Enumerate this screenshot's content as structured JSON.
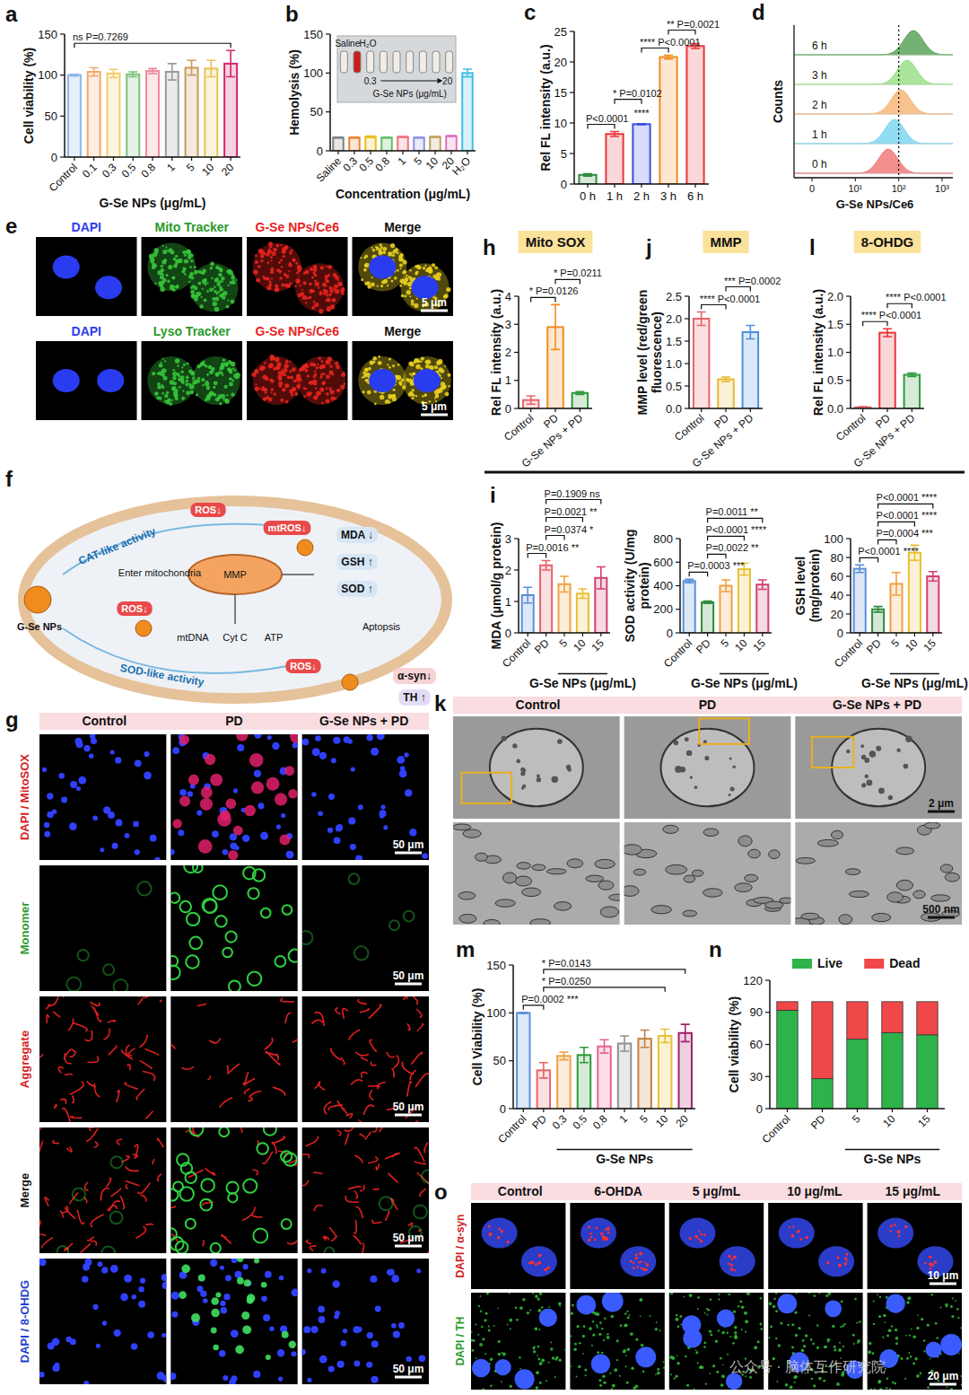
{
  "chart_data": [
    {
      "panel": "a",
      "type": "bar",
      "y_label": "Cell viability (%)",
      "x_label": "G-Se NPs (μg/mL)",
      "categories": [
        "Control",
        "0.1",
        "0.3",
        "0.5",
        "0.8",
        "1",
        "5",
        "10",
        "20"
      ],
      "values": [
        100,
        104,
        102,
        101,
        105,
        104,
        109,
        108,
        114
      ],
      "errors": [
        1,
        5,
        5,
        3,
        3,
        10,
        9,
        10,
        16
      ],
      "colors": [
        "#8fb4ea",
        "#f2a86a",
        "#f0cc6a",
        "#7cc07c",
        "#f08a9a",
        "#9a9a9a",
        "#c79a5a",
        "#e6c34e",
        "#d6246e"
      ],
      "ylim": [
        0,
        150
      ],
      "yticks": [
        0,
        50,
        100,
        150
      ],
      "annotations": [
        {
          "text": "ns P=0.7269",
          "between": [
            0,
            8
          ]
        }
      ]
    },
    {
      "panel": "b",
      "type": "bar",
      "y_label": "Hemolysis (%)",
      "x_label": "Concentration (μg/mL)",
      "categories": [
        "Saline",
        "0.3",
        "0.5",
        "0.8",
        "1",
        "5",
        "10",
        "20",
        "H₂O"
      ],
      "values": [
        17,
        17,
        18,
        17,
        18,
        17,
        18,
        19,
        100
      ],
      "errors": [
        0.5,
        0.5,
        1,
        0.5,
        0.5,
        0.5,
        0.5,
        0.5,
        5
      ],
      "colors": [
        "#808080",
        "#f08030",
        "#e8c020",
        "#60c060",
        "#f07080",
        "#9090e0",
        "#c0a060",
        "#e070c0",
        "#40c0e0"
      ],
      "ylim": [
        0,
        150
      ],
      "yticks": [
        0,
        50,
        100,
        150
      ],
      "inset": {
        "left": "Saline",
        "right": "H₂O",
        "from": "0.3",
        "to": "20",
        "label": "G-Se NPs (μg/mL)"
      }
    },
    {
      "panel": "c",
      "type": "bar",
      "y_label": "Rel FL intensity (a.u.)",
      "categories": [
        "0 h",
        "1 h",
        "2 h",
        "3 h",
        "6 h"
      ],
      "values": [
        1.5,
        8.2,
        9.8,
        20.8,
        22.6
      ],
      "errors": [
        0.2,
        0.4,
        0.1,
        0.3,
        0.4
      ],
      "colors": [
        "#2e8b3e",
        "#e8363a",
        "#3a4fe0",
        "#f08c1e",
        "#e8363a"
      ],
      "ylim": [
        0,
        25
      ],
      "yticks": [
        0,
        5,
        10,
        15,
        20,
        25
      ],
      "annotations": [
        {
          "text": "P<0.0001",
          "between": [
            0,
            1
          ]
        },
        {
          "text": "****",
          "between": [
            2,
            2
          ]
        },
        {
          "text": "* P=0.0102",
          "between": [
            1,
            2
          ]
        },
        {
          "text": "**** P<0.0001",
          "between": [
            2,
            3
          ]
        },
        {
          "text": "** P=0.0021",
          "between": [
            3,
            4
          ]
        }
      ]
    },
    {
      "panel": "h",
      "type": "bar",
      "title": "Mito SOX",
      "y_label": "Rel FL intensity (a.u.)",
      "categories": [
        "Control",
        "PD",
        "G-Se NPs + PD"
      ],
      "values": [
        0.3,
        2.9,
        0.55
      ],
      "errors": [
        0.15,
        0.8,
        0.05
      ],
      "colors": [
        "#e8636b",
        "#f08c1e",
        "#2e9a3e"
      ],
      "ylim": [
        0,
        4
      ],
      "yticks": [
        0,
        1,
        2,
        3,
        4
      ],
      "annotations": [
        {
          "text": "* P=0.0126",
          "between": [
            0,
            1
          ]
        },
        {
          "text": "* P=0.0211",
          "between": [
            1,
            2
          ]
        }
      ]
    },
    {
      "panel": "j",
      "type": "bar",
      "title": "MMP",
      "y_label": "MMP level (red/green fluorescence)",
      "categories": [
        "Control",
        "PD",
        "G-Se NPs + PD"
      ],
      "values": [
        2.0,
        0.65,
        1.7
      ],
      "errors": [
        0.15,
        0.05,
        0.15
      ],
      "colors": [
        "#e8636b",
        "#e8b830",
        "#4a90d9"
      ],
      "ylim": [
        0,
        2.5
      ],
      "yticks": [
        {
          "value": 0,
          "label": "0.0"
        },
        0.5,
        {
          "value": 1,
          "label": "1.0"
        },
        1.5,
        {
          "value": 2,
          "label": "2.0"
        },
        2.5
      ],
      "annotations": [
        {
          "text": "**** P<0.0001",
          "between": [
            0,
            1
          ]
        },
        {
          "text": "*** P=0.0002",
          "between": [
            1,
            2
          ]
        }
      ]
    },
    {
      "panel": "l",
      "type": "bar",
      "title": "8-OHDG",
      "y_label": "Rel FL intensity (a.u.)",
      "categories": [
        "Control",
        "PD",
        "G-Se NPs + PD"
      ],
      "values": [
        0.02,
        1.35,
        0.6
      ],
      "errors": [
        0.01,
        0.07,
        0.03
      ],
      "colors": [
        "#e8636b",
        "#e8363a",
        "#2e9a3e"
      ],
      "ylim": [
        0,
        2
      ],
      "yticks": [
        {
          "value": 0,
          "label": "0.0"
        },
        0.5,
        {
          "value": 1,
          "label": "1.0"
        },
        1.5,
        {
          "value": 2,
          "label": "2.0"
        }
      ],
      "annotations": [
        {
          "text": "**** P<0.0001",
          "between": [
            0,
            1
          ]
        },
        {
          "text": "**** P<0.0001",
          "between": [
            1,
            2
          ]
        }
      ]
    },
    {
      "panel": "i",
      "type": "bar",
      "y_label": "MDA (μmol/g protein)",
      "x_label": "G-Se NPs (μg/mL)",
      "x_group": [
        2,
        4
      ],
      "categories": [
        "Control",
        "PD",
        "5",
        "10",
        "15"
      ],
      "values": [
        1.2,
        2.15,
        1.55,
        1.25,
        1.75
      ],
      "errors": [
        0.25,
        0.15,
        0.25,
        0.15,
        0.35
      ],
      "colors": [
        "#5b8fd9",
        "#e8636b",
        "#f0a040",
        "#e8c030",
        "#d04070"
      ],
      "ylim": [
        0,
        3
      ],
      "yticks": [
        0,
        1,
        2,
        3
      ],
      "annotations": [
        {
          "text": "P=0.0016 **",
          "between": [
            0,
            1
          ]
        },
        {
          "text": "P=0.0374 *",
          "between": [
            1,
            2
          ]
        },
        {
          "text": "P=0.0021 **",
          "between": [
            1,
            3
          ]
        },
        {
          "text": "P=0.1909 ns",
          "between": [
            1,
            4
          ]
        }
      ]
    },
    {
      "type": "bar",
      "y_label": "SOD activity (U/mg protein)",
      "x_label": "G-Se NPs (μg/mL)",
      "x_group": [
        2,
        4
      ],
      "categories": [
        "Control",
        "PD",
        "5",
        "10",
        "15"
      ],
      "values": [
        440,
        260,
        400,
        540,
        410
      ],
      "errors": [
        15,
        10,
        50,
        50,
        40
      ],
      "colors": [
        "#5b8fd9",
        "#2e8b3e",
        "#f0a040",
        "#e8c030",
        "#d04070"
      ],
      "ylim": [
        0,
        800
      ],
      "yticks": [
        0,
        200,
        400,
        600,
        800
      ],
      "annotations": [
        {
          "text": "P=0.0003 ***",
          "between": [
            0,
            1
          ]
        },
        {
          "text": "P=0.0022 **",
          "between": [
            1,
            2
          ]
        },
        {
          "text": "P<0.0001 ****",
          "between": [
            1,
            3
          ]
        },
        {
          "text": "P=0.0011 **",
          "between": [
            1,
            4
          ]
        }
      ]
    },
    {
      "type": "bar",
      "y_label": "GSH level (mg/protein)",
      "x_label": "G-Se NPs (μg/mL)",
      "x_group": [
        2,
        4
      ],
      "categories": [
        "Control",
        "PD",
        "5",
        "10",
        "15"
      ],
      "values": [
        68,
        25,
        52,
        85,
        60
      ],
      "errors": [
        4,
        3,
        12,
        8,
        5
      ],
      "colors": [
        "#5b8fd9",
        "#2e8b3e",
        "#f0a040",
        "#e8c030",
        "#d04070"
      ],
      "ylim": [
        0,
        100
      ],
      "yticks": [
        0,
        20,
        40,
        60,
        80,
        100
      ],
      "annotations": [
        {
          "text": "P<0.0001 ****",
          "between": [
            0,
            1
          ]
        },
        {
          "text": "P=0.0004 ***",
          "between": [
            1,
            2
          ]
        },
        {
          "text": "P<0.0001 ****",
          "between": [
            1,
            3
          ]
        },
        {
          "text": "P<0.0001 ****",
          "between": [
            1,
            4
          ]
        }
      ]
    },
    {
      "panel": "m",
      "type": "bar",
      "y_label": "Cell Viability (%)",
      "x_label": "G-Se NPs",
      "x_group": [
        2,
        8
      ],
      "categories": [
        "Control",
        "PD",
        "0.3",
        "0.5",
        "0.8",
        "1",
        "5",
        "10",
        "20"
      ],
      "values": [
        100,
        40,
        55,
        56,
        65,
        68,
        73,
        76,
        79
      ],
      "errors": [
        0.5,
        8,
        4,
        8,
        7,
        8,
        9,
        7,
        9
      ],
      "colors": [
        "#5b8fd9",
        "#e8636b",
        "#f0a040",
        "#2e9a3e",
        "#e86090",
        "#909090",
        "#c08040",
        "#e8c030",
        "#a0206a"
      ],
      "ylim": [
        0,
        150
      ],
      "yticks": [
        0,
        50,
        100,
        150
      ],
      "annotations": [
        {
          "text": "P=0.0002 ***",
          "between": [
            0,
            1
          ]
        },
        {
          "text": "* P=0.0250",
          "between": [
            1,
            7
          ]
        },
        {
          "text": "* P=0.0143",
          "between": [
            1,
            8
          ]
        }
      ]
    },
    {
      "panel": "n",
      "type": "bar",
      "stacked": true,
      "legend": "top",
      "y_label": "Cell viability (%)",
      "x_label": "G-Se NPs",
      "x_group": [
        2,
        4
      ],
      "categories": [
        "Control",
        "PD",
        "5",
        "10",
        "15"
      ],
      "series": [
        {
          "name": "Live",
          "color": "#2db34a",
          "values": [
            92,
            28,
            65,
            71,
            69
          ]
        },
        {
          "name": "Dead",
          "color": "#f04848",
          "values": [
            8,
            72,
            35,
            29,
            31
          ]
        }
      ],
      "ylim": [
        0,
        120
      ],
      "yticks": [
        0,
        30,
        60,
        90,
        120
      ]
    }
  ],
  "flow": {
    "panel": "d",
    "labels": [
      "6 h",
      "3 h",
      "2 h",
      "1 h",
      "0 h"
    ],
    "colors": [
      "#5aa55a",
      "#9be08a",
      "#f7b77a",
      "#7fd6f2",
      "#f07a7a"
    ],
    "y_label": "Counts",
    "x_label": "G-Se NPs/Ce6",
    "x_tick_labels": [
      "0",
      "10¹",
      "10²",
      "10³"
    ]
  },
  "colocalization": {
    "panel": "e",
    "rows": [
      {
        "labels": [
          "DAPI",
          "Mito Tracker",
          "G-Se NPs/Ce6",
          "Merge"
        ],
        "colors": [
          "#2f3cf0",
          "#2a9a2a",
          "#e8231e",
          "#111111"
        ],
        "scale_bar": "5 μm"
      },
      {
        "labels": [
          "DAPI",
          "Lyso Tracker",
          "G-Se NPs/Ce6",
          "Merge"
        ],
        "colors": [
          "#2f3cf0",
          "#2a9a2a",
          "#e8231e",
          "#111111"
        ],
        "scale_bar": "5 μm"
      }
    ]
  },
  "schematic": {
    "panel": "f",
    "labels": [
      "G-Se NPs",
      "CAT-like activity",
      "ROS↓",
      "mtROS↓",
      "Enter mitochondria",
      "MMP",
      "MDA ↓",
      "GSH ↑",
      "SOD ↑",
      "ROS↓",
      "mtDNA",
      "Cyt C",
      "ATP",
      "ROS↓",
      "Aptopsis",
      "SOD-like activity",
      "α-syn↓",
      "TH ↑"
    ]
  },
  "microscopy": {
    "panel": "g",
    "columns": [
      "Control",
      "PD",
      "G-Se NPs + PD"
    ],
    "rows": [
      {
        "label": "DAPI / MitoSOX",
        "color": "#d42020",
        "scale_bar": "50 μm"
      },
      {
        "label": "Monomer",
        "color": "#2a9a2a",
        "scale_bar": "50 μm"
      },
      {
        "label": "Aggregate",
        "color": "#d42020",
        "scale_bar": "50 μm"
      },
      {
        "label": "Merge",
        "color": "#111111",
        "scale_bar": "50 μm"
      },
      {
        "label": "DAPI / 8-OHDG",
        "color": "#1f3fd0",
        "scale_bar": "50 μm"
      }
    ]
  },
  "tem": {
    "panel": "k",
    "columns": [
      "Control",
      "PD",
      "G-Se NPs + PD"
    ],
    "scale_bars": [
      "2 μm",
      "500 nm"
    ]
  },
  "immunostaining": {
    "panel": "o",
    "columns": [
      "Control",
      "6-OHDA",
      "5 μg/mL",
      "10 μg/mL",
      "15 μg/mL"
    ],
    "rows": [
      {
        "label": "DAPI / α-syn",
        "color": "#d42020",
        "scale_bar": "10 μm"
      },
      {
        "label": "DAPI / TH",
        "color": "#2a9a2a",
        "scale_bar": "20 μm"
      }
    ]
  },
  "watermark": "公众号 · 脑体互作研究院"
}
